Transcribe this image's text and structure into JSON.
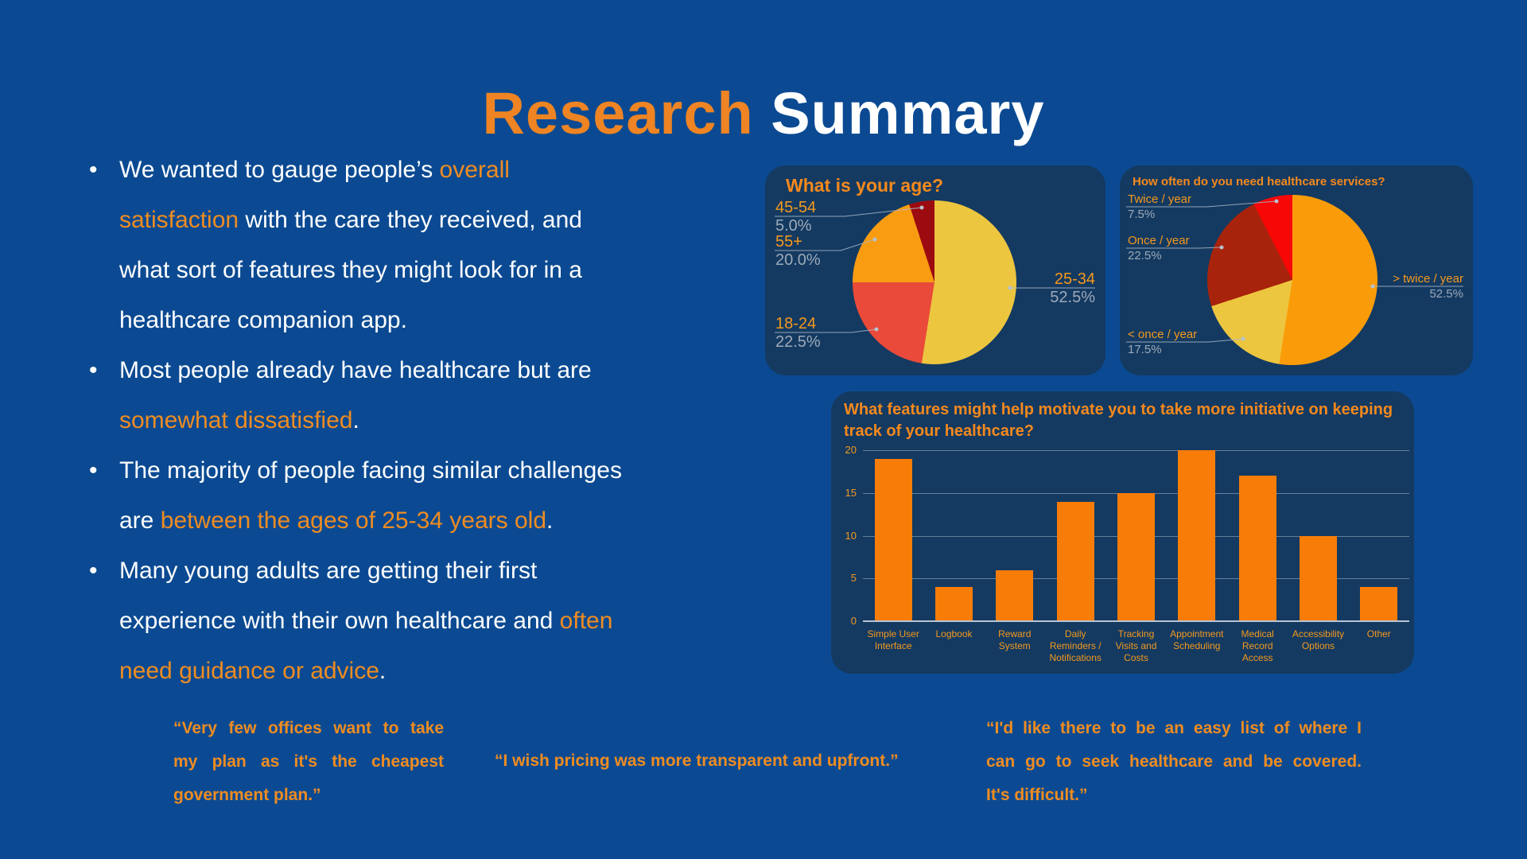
{
  "slide": {
    "background": "#0B4A92",
    "panel_background": "#143A61"
  },
  "colors": {
    "accent_orange": "#EF8C21",
    "chart_orange": "#F5991D",
    "muted_gray": "#9DA9B9",
    "white": "#FFFFFF"
  },
  "title": {
    "part1": "Research",
    "part2": " Summary"
  },
  "bullets": [
    {
      "lines": [
        [
          {
            "t": "We wanted to gauge people’s ",
            "c": "w"
          },
          {
            "t": "overall",
            "c": "o"
          }
        ],
        [
          {
            "t": "satisfaction",
            "c": "o"
          },
          {
            "t": " with the care they received, and",
            "c": "w"
          }
        ],
        [
          {
            "t": "what sort of features they might look for in a",
            "c": "w"
          }
        ],
        [
          {
            "t": "healthcare companion app.",
            "c": "w"
          }
        ]
      ]
    },
    {
      "lines": [
        [
          {
            "t": "Most people already have healthcare but are",
            "c": "w"
          }
        ],
        [
          {
            "t": "somewhat dissatisfied",
            "c": "o"
          },
          {
            "t": ".",
            "c": "w"
          }
        ]
      ]
    },
    {
      "lines": [
        [
          {
            "t": "The majority of people facing similar challenges",
            "c": "w"
          }
        ],
        [
          {
            "t": "are ",
            "c": "w"
          },
          {
            "t": "between the ages of 25-34 years old",
            "c": "o"
          },
          {
            "t": ".",
            "c": "w"
          }
        ]
      ]
    },
    {
      "lines": [
        [
          {
            "t": "Many young adults are getting their first",
            "c": "w"
          }
        ],
        [
          {
            "t": "experience with their own healthcare and ",
            "c": "w"
          },
          {
            "t": "often",
            "c": "o"
          }
        ],
        [
          {
            "t": "need guidance or advice",
            "c": "o"
          },
          {
            "t": ".",
            "c": "w"
          }
        ]
      ]
    }
  ],
  "chart_data": [
    {
      "type": "pie",
      "title": "What is your age?",
      "legend_position": "callout-labels",
      "slices": [
        {
          "label": "25-34",
          "value": 52.5,
          "pct": "52.5%",
          "color": "#ECC63F"
        },
        {
          "label": "18-24",
          "value": 22.5,
          "pct": "22.5%",
          "color": "#EA4A39"
        },
        {
          "label": "55+",
          "value": 20.0,
          "pct": "20.0%",
          "color": "#F99C12"
        },
        {
          "label": "45-54",
          "value": 5.0,
          "pct": "5.0%",
          "color": "#9C0B10"
        }
      ]
    },
    {
      "type": "pie",
      "title": "How often do you need healthcare services?",
      "legend_position": "callout-labels",
      "slices": [
        {
          "label": "> twice / year",
          "value": 52.5,
          "pct": "52.5%",
          "color": "#FA9C09"
        },
        {
          "label": "< once / year",
          "value": 17.5,
          "pct": "17.5%",
          "color": "#EDC63F"
        },
        {
          "label": "Once / year",
          "value": 22.5,
          "pct": "22.5%",
          "color": "#A8230B"
        },
        {
          "label": "Twice / year",
          "value": 7.5,
          "pct": "7.5%",
          "color": "#F80707"
        }
      ]
    },
    {
      "type": "bar",
      "title": "What features might help motivate you to take more initiative on keeping track of your healthcare?",
      "title_lines": [
        "What features might help motivate you to take more initiative on keeping",
        "track of your healthcare?"
      ],
      "categories": [
        "Simple User Interface",
        "Logbook",
        "Reward System",
        "Daily Reminders / Notifications",
        "Tracking Visits and Costs",
        "Appointment Scheduling",
        "Medical Record Access",
        "Accessibility Options",
        "Other"
      ],
      "category_lines": [
        [
          "Simple User",
          "Interface"
        ],
        [
          "Logbook"
        ],
        [
          "Reward",
          "System"
        ],
        [
          "Daily",
          "Reminders /",
          "Notifications"
        ],
        [
          "Tracking",
          "Visits and",
          "Costs"
        ],
        [
          "Appointment",
          "Scheduling"
        ],
        [
          "Medical",
          "Record",
          "Access"
        ],
        [
          "Accessibility",
          "Options"
        ],
        [
          "Other"
        ]
      ],
      "values": [
        19,
        4,
        6,
        14,
        15,
        20,
        17,
        10,
        4
      ],
      "ylim": [
        0,
        20
      ],
      "yticks": [
        0,
        5,
        10,
        15,
        20
      ],
      "bar_color": "#F87C08",
      "grid": true
    }
  ],
  "quotes": [
    {
      "lines": [
        "“Very few offices want to take",
        "my plan as it's the cheapest",
        "government plan.”"
      ]
    },
    {
      "lines": [
        "“I wish pricing was more transparent and upfront.”"
      ]
    },
    {
      "lines": [
        "“I'd like there to be an easy list of where I",
        "can go to seek healthcare and be covered.",
        "It's difficult.”"
      ]
    }
  ]
}
